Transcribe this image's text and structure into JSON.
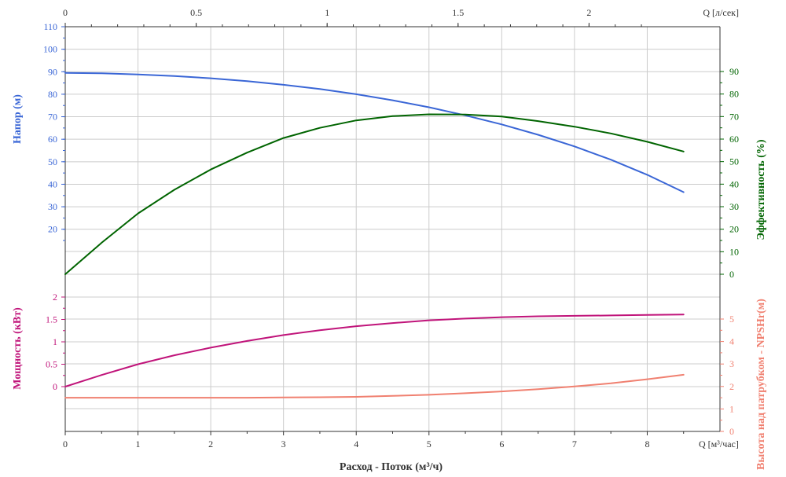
{
  "chart_data": {
    "type": "line",
    "x_label": "Расход - Поток (м³/ч)",
    "x_unit": "Q [м³/час]",
    "x_ticks": [
      0,
      1,
      2,
      3,
      4,
      5,
      6,
      7,
      8
    ],
    "x_range": [
      0,
      9
    ],
    "x_top_unit": "Q [л/сек]",
    "x_top_ticks": [
      0,
      0.5,
      1,
      1.5,
      2
    ],
    "panels": [
      {
        "name": "upper",
        "left_axis": {
          "label": "Напор (м)",
          "color": "#3a66d6",
          "range": [
            0,
            110
          ],
          "ticks": [
            20,
            30,
            40,
            50,
            60,
            70,
            80,
            90,
            100,
            110
          ]
        },
        "right_axis": {
          "label": "Эффективность (%)",
          "color": "#006400",
          "range": [
            0,
            90
          ],
          "ticks": [
            0,
            10,
            20,
            30,
            40,
            50,
            60,
            70,
            80,
            90
          ]
        },
        "series": [
          {
            "name": "Напор (м)",
            "axis": "left",
            "color": "#3a66d6",
            "x": [
              0,
              0.5,
              1,
              1.5,
              2,
              2.5,
              3,
              3.5,
              4,
              4.5,
              5,
              5.5,
              6,
              6.5,
              7,
              7.5,
              8,
              8.5
            ],
            "y": [
              89.5,
              89.3,
              88.8,
              88.1,
              87.1,
              85.8,
              84.2,
              82.3,
              80,
              77.3,
              74.2,
              70.6,
              66.6,
              62,
              56.8,
              50.9,
              44.2,
              36.5
            ]
          },
          {
            "name": "Эффективность (%)",
            "axis": "right",
            "color": "#006400",
            "x": [
              0,
              0.5,
              1,
              1.5,
              2,
              2.5,
              3,
              3.5,
              4,
              4.5,
              5,
              5.5,
              6,
              6.5,
              7,
              7.5,
              8,
              8.5
            ],
            "y": [
              0,
              14,
              27,
              37.5,
              46.5,
              54,
              60.5,
              65,
              68.3,
              70.2,
              71,
              70.9,
              70,
              68,
              65.5,
              62.5,
              58.8,
              54.5
            ]
          }
        ]
      },
      {
        "name": "lower",
        "left_axis": {
          "label": "Мощность (кВт)",
          "color": "#c0147a",
          "range": [
            0,
            2
          ],
          "ticks": [
            0,
            0.5,
            1,
            1.5,
            2
          ]
        },
        "right_axis": {
          "label": "Высота над патрубком - NPSHr(м)",
          "color": "#f08070",
          "range": [
            0,
            6
          ],
          "ticks": [
            0,
            1,
            2,
            3,
            4,
            5
          ]
        },
        "series": [
          {
            "name": "Мощность (кВт)",
            "axis": "left",
            "color": "#c0147a",
            "x": [
              0,
              0.5,
              1,
              1.5,
              2,
              2.5,
              3,
              3.5,
              4,
              4.5,
              5,
              5.5,
              6,
              6.5,
              7,
              7.5,
              8,
              8.5
            ],
            "y": [
              0,
              0.26,
              0.5,
              0.7,
              0.87,
              1.02,
              1.15,
              1.26,
              1.35,
              1.42,
              1.48,
              1.52,
              1.55,
              1.57,
              1.58,
              1.59,
              1.6,
              1.61
            ]
          },
          {
            "name": "NPSHr (м)",
            "axis": "right",
            "color": "#f08070",
            "x": [
              0,
              0.5,
              1,
              1.5,
              2,
              2.5,
              3,
              3.5,
              4,
              4.5,
              5,
              5.5,
              6,
              6.5,
              7,
              7.5,
              8,
              8.5
            ],
            "y": [
              1.5,
              1.5,
              1.5,
              1.5,
              1.5,
              1.5,
              1.51,
              1.52,
              1.54,
              1.58,
              1.63,
              1.7,
              1.78,
              1.88,
              2.0,
              2.14,
              2.32,
              2.52
            ]
          }
        ]
      }
    ]
  }
}
